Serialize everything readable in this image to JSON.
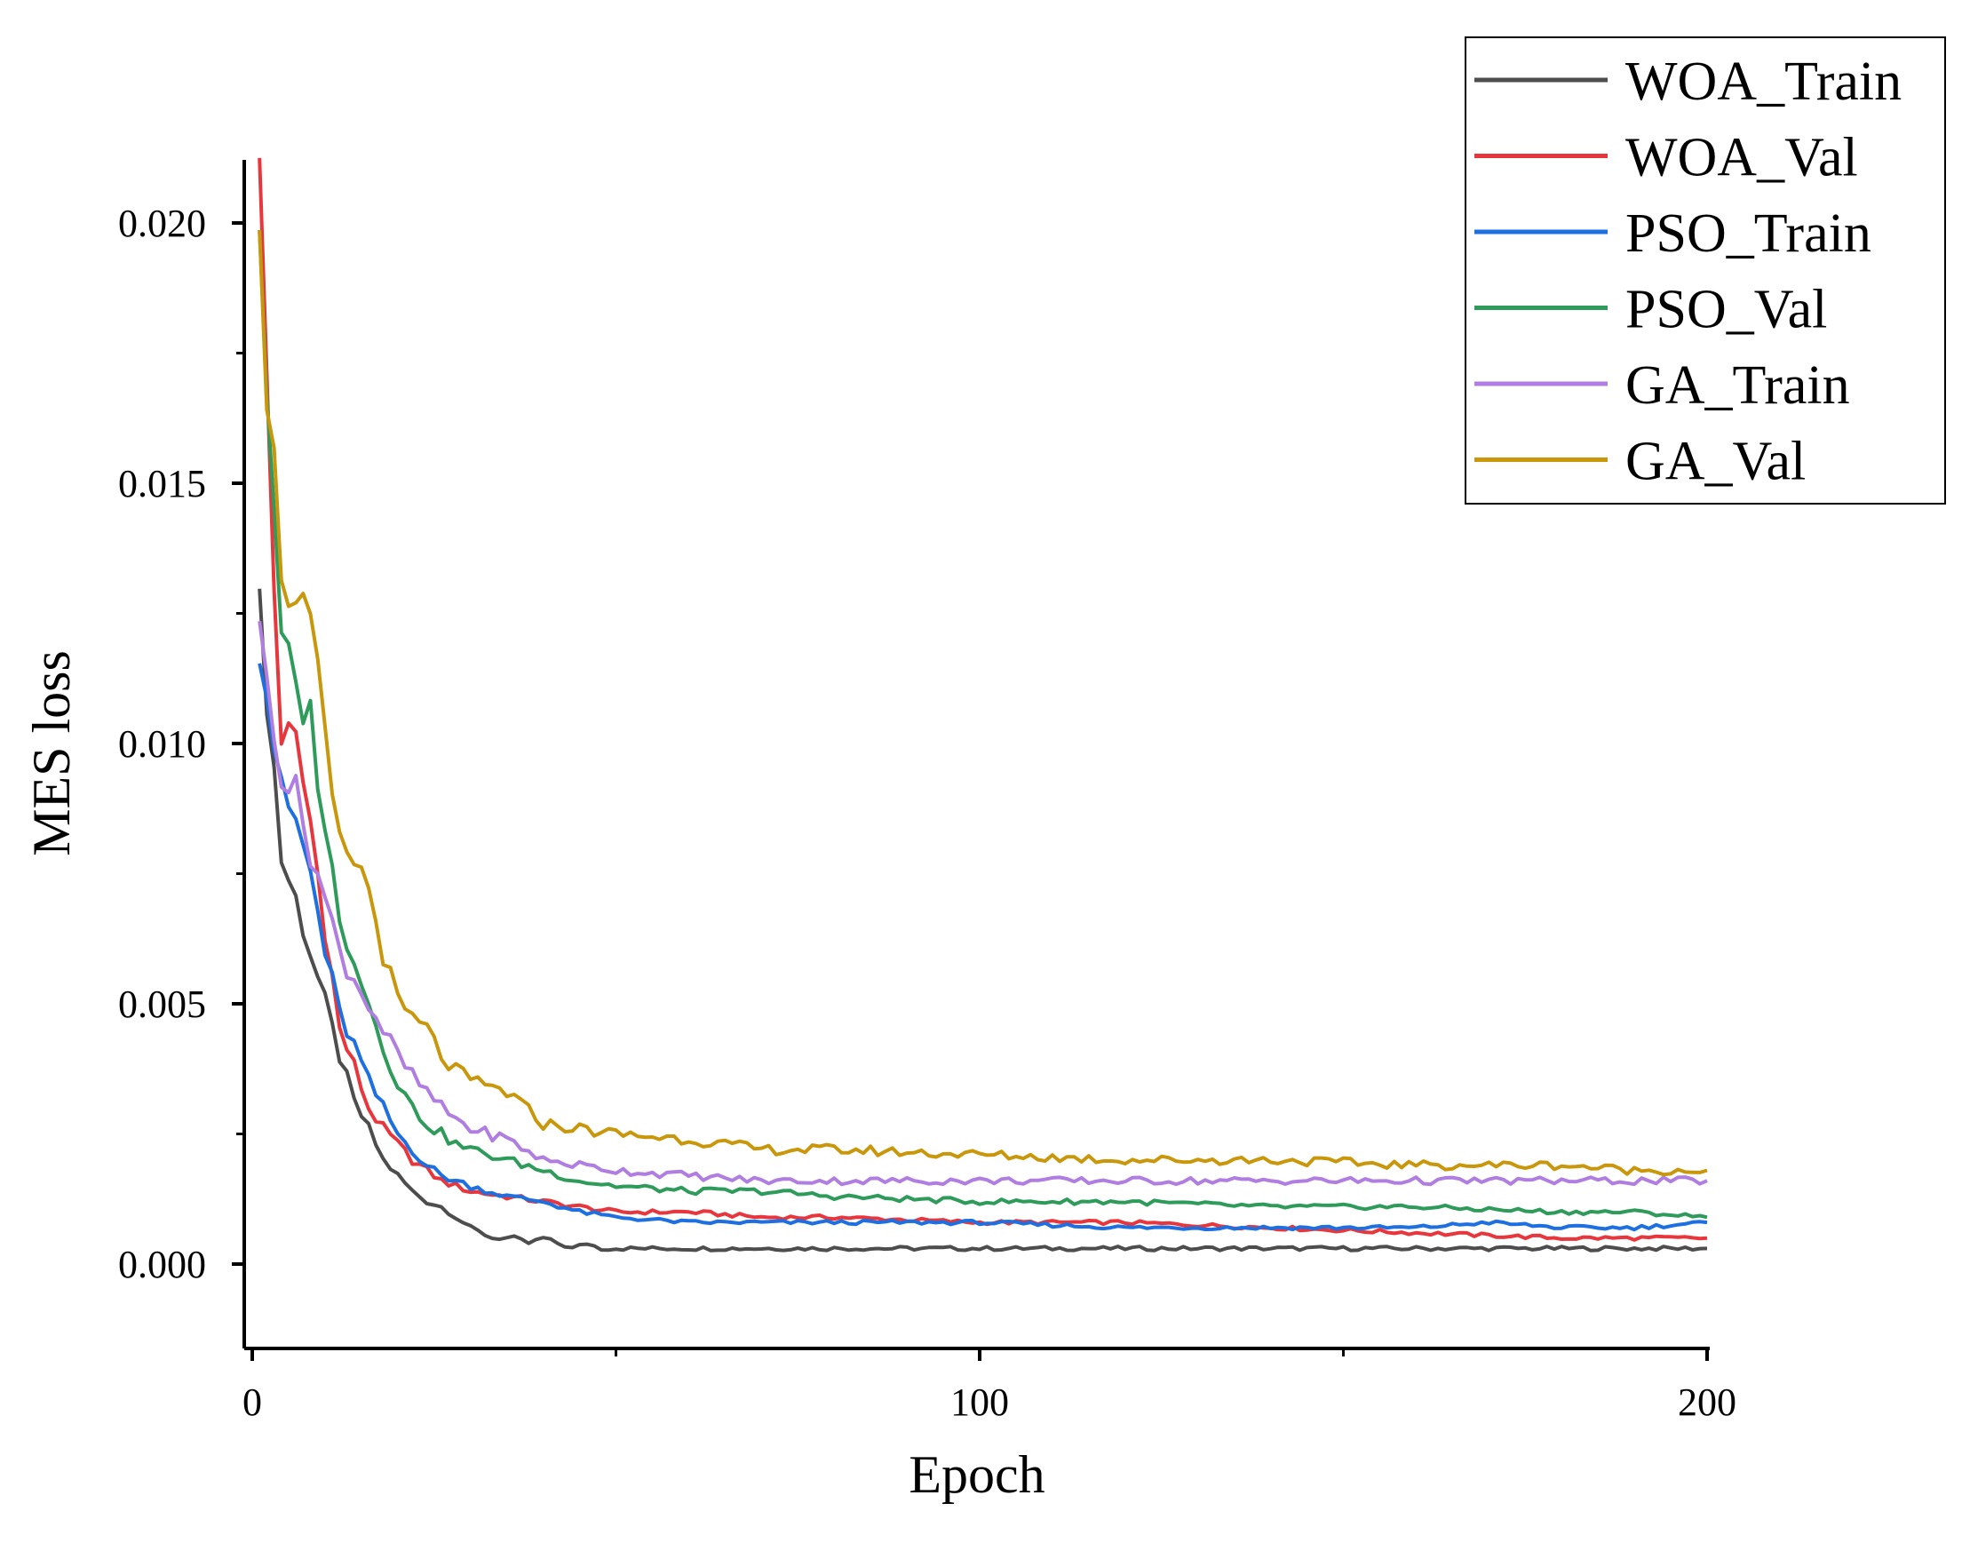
{
  "chart_data": {
    "type": "line",
    "title": "",
    "xlabel": "Epoch",
    "ylabel": "MES loss",
    "xlim": [
      0,
      200
    ],
    "ylim": [
      -0.0016,
      0.0213
    ],
    "xticks": [
      0,
      100,
      200
    ],
    "xtick_labels": [
      "0",
      "100",
      "200"
    ],
    "yticks": [
      0.0,
      0.005,
      0.01,
      0.015,
      0.02
    ],
    "ytick_labels": [
      "0.000",
      "0.005",
      "0.010",
      "0.015",
      "0.020"
    ],
    "grid": false,
    "legend_position": "top-right",
    "series": [
      {
        "name": "WOA_Train",
        "color": "#4d4d4d",
        "points": [
          [
            1,
            0.0125
          ],
          [
            3,
            0.0095
          ],
          [
            4,
            0.0078
          ],
          [
            6,
            0.007
          ],
          [
            8,
            0.006
          ],
          [
            10,
            0.005
          ],
          [
            12,
            0.004
          ],
          [
            14,
            0.0031
          ],
          [
            16,
            0.0026
          ],
          [
            18,
            0.002
          ],
          [
            20,
            0.0017
          ],
          [
            22,
            0.0014
          ],
          [
            24,
            0.0012
          ],
          [
            26,
            0.0011
          ],
          [
            28,
            0.0009
          ],
          [
            30,
            0.0007
          ],
          [
            33,
            0.0005
          ],
          [
            36,
            0.0005
          ],
          [
            38,
            0.0004
          ],
          [
            40,
            0.0005
          ],
          [
            42,
            0.0004
          ],
          [
            44,
            0.0003
          ],
          [
            46,
            0.0004
          ],
          [
            48,
            0.0003
          ],
          [
            50,
            0.0003
          ],
          [
            60,
            0.0003
          ],
          [
            80,
            0.0003
          ],
          [
            100,
            0.0003
          ],
          [
            120,
            0.0003
          ],
          [
            140,
            0.0003
          ],
          [
            160,
            0.0003
          ],
          [
            180,
            0.0003
          ],
          [
            190,
            0.0003
          ],
          [
            200,
            0.0003
          ]
        ]
      },
      {
        "name": "WOA_Val",
        "color": "#e8363d",
        "points": [
          [
            1,
            0.0208
          ],
          [
            2,
            0.017
          ],
          [
            3,
            0.013
          ],
          [
            4,
            0.0102
          ],
          [
            6,
            0.01
          ],
          [
            8,
            0.0085
          ],
          [
            10,
            0.0065
          ],
          [
            12,
            0.0045
          ],
          [
            14,
            0.0038
          ],
          [
            16,
            0.003
          ],
          [
            18,
            0.0026
          ],
          [
            20,
            0.0023
          ],
          [
            22,
            0.002
          ],
          [
            24,
            0.0018
          ],
          [
            26,
            0.0016
          ],
          [
            28,
            0.0015
          ],
          [
            30,
            0.0014
          ],
          [
            35,
            0.0013
          ],
          [
            40,
            0.0012
          ],
          [
            45,
            0.0011
          ],
          [
            50,
            0.001
          ],
          [
            60,
            0.001
          ],
          [
            70,
            0.0009
          ],
          [
            80,
            0.0009
          ],
          [
            100,
            0.0008
          ],
          [
            120,
            0.0008
          ],
          [
            140,
            0.0007
          ],
          [
            160,
            0.0006
          ],
          [
            180,
            0.0005
          ],
          [
            190,
            0.0005
          ],
          [
            200,
            0.0005
          ]
        ]
      },
      {
        "name": "PSO_Train",
        "color": "#1e6fe0",
        "points": [
          [
            1,
            0.012
          ],
          [
            3,
            0.01
          ],
          [
            4,
            0.009
          ],
          [
            6,
            0.0085
          ],
          [
            8,
            0.0075
          ],
          [
            10,
            0.006
          ],
          [
            12,
            0.0048
          ],
          [
            14,
            0.0042
          ],
          [
            16,
            0.0035
          ],
          [
            18,
            0.003
          ],
          [
            20,
            0.0025
          ],
          [
            22,
            0.0022
          ],
          [
            24,
            0.0019
          ],
          [
            26,
            0.0017
          ],
          [
            28,
            0.0016
          ],
          [
            30,
            0.0015
          ],
          [
            35,
            0.0013
          ],
          [
            40,
            0.0012
          ],
          [
            45,
            0.001
          ],
          [
            50,
            0.0009
          ],
          [
            60,
            0.0008
          ],
          [
            70,
            0.0008
          ],
          [
            80,
            0.0008
          ],
          [
            100,
            0.0008
          ],
          [
            120,
            0.0007
          ],
          [
            140,
            0.0007
          ],
          [
            160,
            0.0007
          ],
          [
            170,
            0.0008
          ],
          [
            180,
            0.0007
          ],
          [
            190,
            0.0007
          ],
          [
            200,
            0.0008
          ]
        ]
      },
      {
        "name": "PSO_Val",
        "color": "#2e9b5b",
        "points": [
          [
            1,
            0.02
          ],
          [
            2,
            0.017
          ],
          [
            3,
            0.014
          ],
          [
            4,
            0.012
          ],
          [
            6,
            0.011
          ],
          [
            8,
            0.0105
          ],
          [
            10,
            0.0085
          ],
          [
            12,
            0.0065
          ],
          [
            14,
            0.006
          ],
          [
            16,
            0.005
          ],
          [
            18,
            0.0042
          ],
          [
            20,
            0.0035
          ],
          [
            22,
            0.003
          ],
          [
            24,
            0.0027
          ],
          [
            26,
            0.0025
          ],
          [
            28,
            0.0023
          ],
          [
            30,
            0.0022
          ],
          [
            35,
            0.002
          ],
          [
            40,
            0.0018
          ],
          [
            45,
            0.0016
          ],
          [
            50,
            0.0015
          ],
          [
            60,
            0.0014
          ],
          [
            70,
            0.0014
          ],
          [
            80,
            0.0013
          ],
          [
            100,
            0.0012
          ],
          [
            120,
            0.0012
          ],
          [
            140,
            0.0011
          ],
          [
            160,
            0.0011
          ],
          [
            180,
            0.001
          ],
          [
            190,
            0.001
          ],
          [
            200,
            0.0009
          ]
        ]
      },
      {
        "name": "GA_Train",
        "color": "#b07ee0",
        "points": [
          [
            1,
            0.012
          ],
          [
            3,
            0.0105
          ],
          [
            4,
            0.0095
          ],
          [
            6,
            0.009
          ],
          [
            8,
            0.008
          ],
          [
            10,
            0.007
          ],
          [
            12,
            0.006
          ],
          [
            14,
            0.0055
          ],
          [
            16,
            0.005
          ],
          [
            18,
            0.0045
          ],
          [
            20,
            0.004
          ],
          [
            22,
            0.0036
          ],
          [
            24,
            0.0033
          ],
          [
            26,
            0.003
          ],
          [
            28,
            0.0028
          ],
          [
            30,
            0.0026
          ],
          [
            35,
            0.0024
          ],
          [
            40,
            0.002
          ],
          [
            45,
            0.0019
          ],
          [
            50,
            0.0018
          ],
          [
            60,
            0.0017
          ],
          [
            70,
            0.0016
          ],
          [
            80,
            0.0016
          ],
          [
            100,
            0.0016
          ],
          [
            120,
            0.0016
          ],
          [
            140,
            0.0016
          ],
          [
            160,
            0.0016
          ],
          [
            180,
            0.0016
          ],
          [
            190,
            0.0016
          ],
          [
            200,
            0.0016
          ]
        ]
      },
      {
        "name": "GA_Val",
        "color": "#c9970b",
        "points": [
          [
            1,
            0.0205
          ],
          [
            2,
            0.017
          ],
          [
            4,
            0.0135
          ],
          [
            6,
            0.0125
          ],
          [
            8,
            0.0123
          ],
          [
            10,
            0.01
          ],
          [
            12,
            0.008
          ],
          [
            14,
            0.0078
          ],
          [
            16,
            0.0072
          ],
          [
            18,
            0.006
          ],
          [
            20,
            0.005
          ],
          [
            22,
            0.0047
          ],
          [
            24,
            0.0045
          ],
          [
            26,
            0.004
          ],
          [
            28,
            0.0037
          ],
          [
            30,
            0.0035
          ],
          [
            35,
            0.0033
          ],
          [
            40,
            0.0027
          ],
          [
            45,
            0.0026
          ],
          [
            50,
            0.0025
          ],
          [
            60,
            0.0024
          ],
          [
            70,
            0.0022
          ],
          [
            80,
            0.0022
          ],
          [
            100,
            0.0021
          ],
          [
            120,
            0.002
          ],
          [
            140,
            0.002
          ],
          [
            160,
            0.0019
          ],
          [
            180,
            0.0019
          ],
          [
            190,
            0.0018
          ],
          [
            200,
            0.0018
          ]
        ]
      }
    ]
  }
}
